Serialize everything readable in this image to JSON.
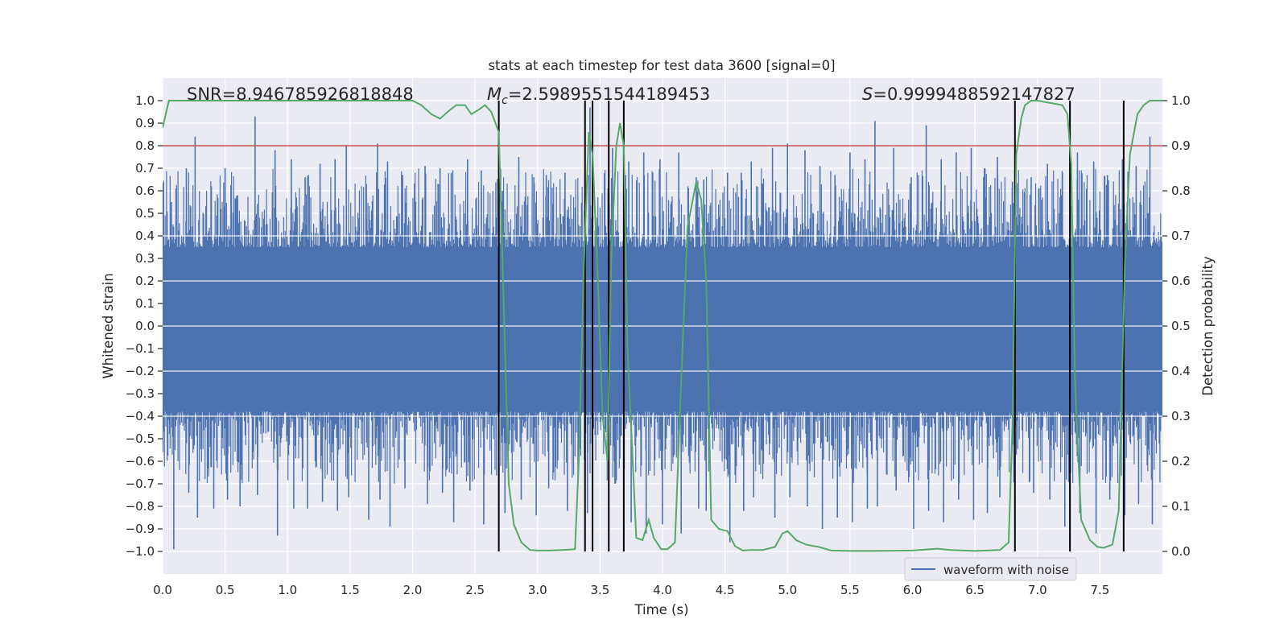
{
  "chart_data": {
    "type": "line",
    "title": "stats at each timestep for test data 3600 [signal=0]",
    "xlabel": "Time (s)",
    "ylabel": "Whitened strain",
    "y2label": "Detection probability",
    "xlim": [
      0.0,
      8.0
    ],
    "ylim": [
      -1.1,
      1.1
    ],
    "y2lim": [
      -0.05,
      1.05
    ],
    "xticks": [
      "0.0",
      "0.5",
      "1.0",
      "1.5",
      "2.0",
      "2.5",
      "3.0",
      "3.5",
      "4.0",
      "4.5",
      "5.0",
      "5.5",
      "6.0",
      "6.5",
      "7.0",
      "7.5"
    ],
    "yticks": [
      "1.0",
      "0.9",
      "0.8",
      "0.7",
      "0.6",
      "0.5",
      "0.4",
      "0.3",
      "0.2",
      "0.1",
      "0.0",
      "−0.1",
      "−0.2",
      "−0.3",
      "−0.4",
      "−0.5",
      "−0.6",
      "−0.7",
      "−0.8",
      "−0.9",
      "−1.0"
    ],
    "y2ticks": [
      "1.0",
      "0.9",
      "0.8",
      "0.7",
      "0.6",
      "0.5",
      "0.4",
      "0.3",
      "0.2",
      "0.1",
      "0.0"
    ],
    "annotations": {
      "snr": "SNR=8.946785926818848",
      "mc_symbol": "M",
      "mc_sub": "c",
      "mc_value": "=2.5989551544189453",
      "s_symbol": "S",
      "s_value": "=0.9999488592147827"
    },
    "threshold": {
      "name": "threshold",
      "y2": 0.9,
      "color": "#c44e52"
    },
    "events": [
      2.69,
      3.38,
      3.44,
      3.57,
      3.69,
      6.82,
      7.26,
      7.69
    ],
    "series": [
      {
        "name": "waveform with noise",
        "color": "#4c72b0",
        "note": "dense whitened noise envelope, approx. +/-0.4 core with spikes up to about +/-0.95",
        "peaks_x": [
          0.07,
          0.19,
          0.26,
          0.39,
          0.5,
          0.6,
          0.74,
          0.9,
          1.03,
          1.14,
          1.26,
          1.38,
          1.47,
          1.63,
          1.72,
          1.8,
          1.92,
          2.1,
          2.22,
          2.31,
          2.44,
          2.55,
          2.72,
          2.85,
          2.97,
          3.07,
          3.22,
          3.38,
          3.42,
          3.6,
          3.73,
          3.85,
          3.98,
          4.13,
          4.27,
          4.33,
          4.52,
          4.63,
          4.71,
          4.88,
          5.0,
          5.14,
          5.26,
          5.38,
          5.5,
          5.62,
          5.7,
          5.85,
          5.99,
          6.11,
          6.23,
          6.35,
          6.47,
          6.58,
          6.68,
          6.8,
          6.95,
          7.08,
          7.2,
          7.32,
          7.45,
          7.56,
          7.68,
          7.79,
          7.9
        ],
        "peaks_top": [
          0.55,
          0.7,
          0.84,
          0.62,
          0.7,
          0.58,
          0.93,
          0.78,
          0.74,
          0.66,
          0.72,
          0.74,
          0.8,
          0.63,
          0.81,
          0.73,
          0.67,
          0.71,
          0.7,
          0.68,
          0.74,
          0.69,
          0.6,
          0.75,
          0.66,
          0.67,
          0.68,
          0.62,
          0.97,
          0.79,
          0.73,
          0.77,
          0.74,
          0.77,
          0.66,
          0.65,
          0.68,
          0.68,
          0.73,
          0.79,
          0.81,
          0.78,
          0.71,
          0.67,
          0.77,
          0.74,
          0.91,
          0.79,
          0.66,
          0.89,
          0.74,
          0.77,
          0.79,
          0.7,
          0.75,
          0.64,
          0.66,
          0.72,
          0.68,
          0.77,
          0.73,
          0.67,
          0.74,
          0.71,
          0.84
        ],
        "peaks_bottom": [
          -0.99,
          -0.74,
          -0.85,
          -0.81,
          -0.77,
          -0.8,
          -0.75,
          -0.93,
          -0.81,
          -0.81,
          -0.78,
          -0.82,
          -0.76,
          -0.86,
          -0.77,
          -0.89,
          -0.72,
          -0.79,
          -0.74,
          -0.87,
          -0.73,
          -0.88,
          -0.83,
          -0.77,
          -0.84,
          -0.72,
          -0.82,
          -0.83,
          -0.85,
          -0.7,
          -0.87,
          -0.92,
          -0.88,
          -0.92,
          -0.81,
          -0.82,
          -0.96,
          -0.82,
          -0.76,
          -0.85,
          -0.76,
          -0.8,
          -0.9,
          -0.85,
          -0.87,
          -0.81,
          -0.8,
          -0.73,
          -0.9,
          -0.82,
          -0.87,
          -0.77,
          -0.86,
          -0.83,
          -0.76,
          -0.89,
          -0.74,
          -0.77,
          -0.89,
          -0.83,
          -0.92,
          -0.77,
          -0.84,
          -0.79,
          -0.88
        ]
      },
      {
        "name": "detection probability",
        "color": "#55a868",
        "x": [
          0.0,
          0.05,
          0.1,
          0.2,
          0.3,
          0.4,
          0.5,
          0.6,
          0.7,
          0.8,
          0.9,
          1.0,
          1.1,
          1.2,
          1.3,
          1.4,
          1.5,
          1.6,
          1.7,
          1.8,
          1.9,
          2.0,
          2.07,
          2.15,
          2.22,
          2.28,
          2.35,
          2.42,
          2.47,
          2.53,
          2.58,
          2.63,
          2.69,
          2.73,
          2.77,
          2.81,
          2.87,
          2.94,
          3.0,
          3.1,
          3.2,
          3.3,
          3.33,
          3.37,
          3.41,
          3.44,
          3.48,
          3.52,
          3.56,
          3.59,
          3.63,
          3.66,
          3.69,
          3.72,
          3.79,
          3.84,
          3.89,
          3.93,
          3.99,
          4.04,
          4.1,
          4.16,
          4.2,
          4.27,
          4.31,
          4.35,
          4.39,
          4.45,
          4.52,
          4.58,
          4.64,
          4.7,
          4.8,
          4.9,
          4.96,
          5.0,
          5.07,
          5.15,
          5.25,
          5.35,
          5.5,
          5.7,
          6.0,
          6.1,
          6.2,
          6.3,
          6.5,
          6.7,
          6.77,
          6.8,
          6.83,
          6.87,
          6.9,
          6.95,
          7.0,
          7.1,
          7.2,
          7.24,
          7.27,
          7.3,
          7.35,
          7.42,
          7.48,
          7.53,
          7.6,
          7.65,
          7.7,
          7.74,
          7.8,
          7.85,
          7.9,
          7.95,
          8.0
        ],
        "y": [
          0.94,
          1.0,
          1.0,
          1.0,
          1.0,
          1.0,
          1.0,
          1.0,
          1.0,
          1.0,
          1.0,
          1.0,
          1.0,
          1.0,
          1.0,
          1.0,
          1.0,
          1.0,
          1.0,
          1.0,
          1.0,
          1.0,
          0.99,
          0.97,
          0.96,
          0.975,
          0.99,
          0.99,
          0.97,
          0.98,
          0.99,
          0.975,
          0.93,
          0.55,
          0.15,
          0.06,
          0.02,
          0.003,
          0.002,
          0.002,
          0.003,
          0.005,
          0.2,
          0.63,
          0.93,
          0.88,
          0.62,
          0.3,
          0.2,
          0.65,
          0.9,
          0.95,
          0.9,
          0.45,
          0.03,
          0.025,
          0.07,
          0.03,
          0.005,
          0.005,
          0.02,
          0.45,
          0.72,
          0.82,
          0.78,
          0.6,
          0.07,
          0.05,
          0.045,
          0.012,
          0.002,
          0.003,
          0.003,
          0.01,
          0.04,
          0.045,
          0.025,
          0.015,
          0.01,
          0.002,
          0.001,
          0.001,
          0.002,
          0.004,
          0.006,
          0.003,
          0.001,
          0.003,
          0.02,
          0.28,
          0.88,
          0.96,
          0.99,
          1.0,
          1.0,
          0.995,
          0.99,
          0.97,
          0.86,
          0.38,
          0.07,
          0.025,
          0.01,
          0.008,
          0.015,
          0.09,
          0.64,
          0.88,
          0.97,
          0.99,
          1.0,
          1.0,
          1.0
        ]
      }
    ],
    "legend": {
      "label": "waveform with noise",
      "position": "lower-center"
    }
  }
}
